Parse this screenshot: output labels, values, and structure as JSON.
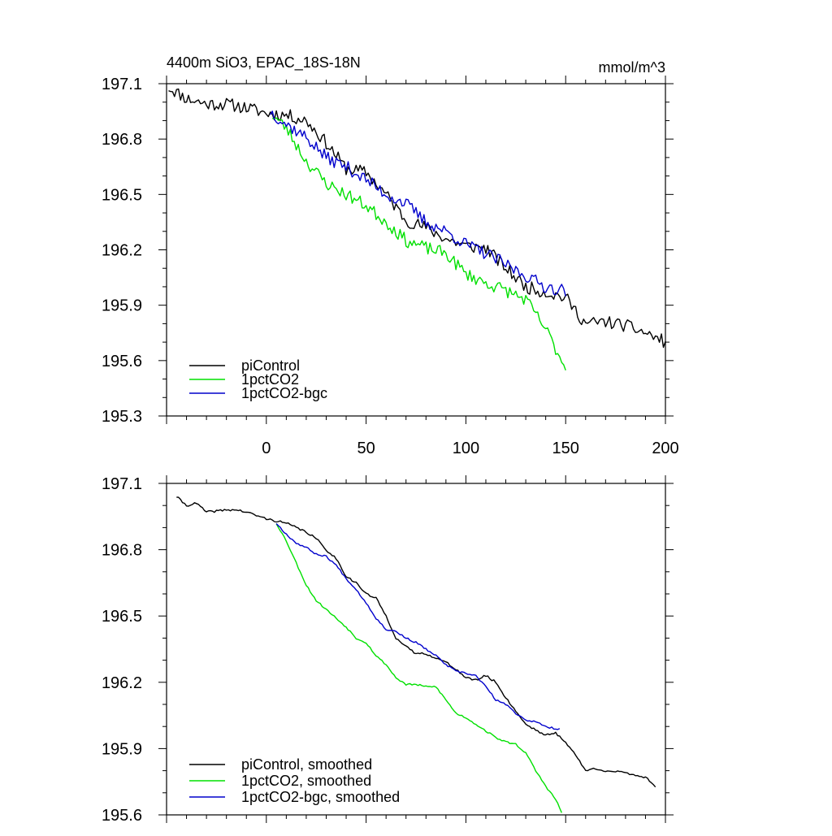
{
  "chart_data": [
    {
      "type": "line",
      "title": "4400m SiO3, EPAC_18S-18N",
      "units": "mmol/m^3",
      "xlim": [
        -50,
        200
      ],
      "ylim": [
        195.3,
        197.1
      ],
      "xticks": [
        0,
        50,
        100,
        150,
        200
      ],
      "yticks": [
        195.3,
        195.6,
        195.9,
        196.2,
        196.5,
        196.8,
        197.1
      ],
      "legend": "bottom-left",
      "series": [
        {
          "name": "piControl",
          "color": "#000000",
          "anchors": [
            [
              -49,
              197.08
            ],
            [
              -40,
              197.02
            ],
            [
              -30,
              196.99
            ],
            [
              -20,
              196.99
            ],
            [
              -10,
              196.97
            ],
            [
              0,
              196.94
            ],
            [
              10,
              196.93
            ],
            [
              20,
              196.9
            ],
            [
              30,
              196.78
            ],
            [
              40,
              196.64
            ],
            [
              50,
              196.62
            ],
            [
              60,
              196.5
            ],
            [
              70,
              196.36
            ],
            [
              80,
              196.32
            ],
            [
              90,
              196.26
            ],
            [
              100,
              196.22
            ],
            [
              110,
              196.21
            ],
            [
              120,
              196.1
            ],
            [
              130,
              196.0
            ],
            [
              140,
              195.97
            ],
            [
              150,
              195.94
            ],
            [
              160,
              195.8
            ],
            [
              170,
              195.81
            ],
            [
              180,
              195.79
            ],
            [
              190,
              195.75
            ],
            [
              200,
              195.7
            ]
          ],
          "noise": 0.035,
          "seed": 11
        },
        {
          "name": "1pctCO2",
          "color": "#00e000",
          "anchors": [
            [
              3,
              196.93
            ],
            [
              10,
              196.86
            ],
            [
              20,
              196.68
            ],
            [
              30,
              196.56
            ],
            [
              40,
              196.5
            ],
            [
              50,
              196.44
            ],
            [
              60,
              196.35
            ],
            [
              70,
              196.25
            ],
            [
              80,
              196.21
            ],
            [
              90,
              196.18
            ],
            [
              100,
              196.07
            ],
            [
              110,
              196.02
            ],
            [
              120,
              195.98
            ],
            [
              130,
              195.93
            ],
            [
              140,
              195.77
            ],
            [
              150,
              195.56
            ]
          ],
          "noise": 0.035,
          "seed": 23
        },
        {
          "name": "1pctCO2-bgc",
          "color": "#0000cc",
          "anchors": [
            [
              2,
              196.95
            ],
            [
              10,
              196.88
            ],
            [
              20,
              196.81
            ],
            [
              30,
              196.7
            ],
            [
              40,
              196.65
            ],
            [
              50,
              196.58
            ],
            [
              60,
              196.5
            ],
            [
              70,
              196.45
            ],
            [
              80,
              196.35
            ],
            [
              90,
              196.3
            ],
            [
              100,
              196.23
            ],
            [
              110,
              196.18
            ],
            [
              120,
              196.12
            ],
            [
              130,
              196.06
            ],
            [
              140,
              196.0
            ],
            [
              150,
              195.98
            ]
          ],
          "noise": 0.035,
          "seed": 37
        }
      ]
    },
    {
      "type": "line",
      "title": "",
      "xlim": [
        -50,
        200
      ],
      "ylim": [
        195.6,
        197.1
      ],
      "yticks": [
        195.6,
        195.9,
        196.2,
        196.5,
        196.8,
        197.1
      ],
      "legend": "bottom-left",
      "series": [
        {
          "name": "piControl, smoothed",
          "color": "#000000",
          "anchors": [
            [
              -45,
              197.04
            ],
            [
              -40,
              197.0
            ],
            [
              -35,
              197.01
            ],
            [
              -30,
              196.97
            ],
            [
              -20,
              196.98
            ],
            [
              -15,
              196.98
            ],
            [
              -10,
              196.97
            ],
            [
              0,
              196.94
            ],
            [
              5,
              196.93
            ],
            [
              10,
              196.92
            ],
            [
              20,
              196.88
            ],
            [
              25,
              196.85
            ],
            [
              30,
              196.8
            ],
            [
              35,
              196.76
            ],
            [
              40,
              196.68
            ],
            [
              45,
              196.65
            ],
            [
              50,
              196.6
            ],
            [
              55,
              196.58
            ],
            [
              60,
              196.5
            ],
            [
              65,
              196.4
            ],
            [
              70,
              196.36
            ],
            [
              75,
              196.33
            ],
            [
              80,
              196.33
            ],
            [
              85,
              196.31
            ],
            [
              90,
              196.29
            ],
            [
              95,
              196.26
            ],
            [
              100,
              196.22
            ],
            [
              105,
              196.21
            ],
            [
              110,
              196.23
            ],
            [
              115,
              196.2
            ],
            [
              120,
              196.13
            ],
            [
              125,
              196.07
            ],
            [
              130,
              196.01
            ],
            [
              140,
              195.96
            ],
            [
              145,
              195.97
            ],
            [
              150,
              195.93
            ],
            [
              155,
              195.87
            ],
            [
              160,
              195.8
            ],
            [
              165,
              195.81
            ],
            [
              170,
              195.8
            ],
            [
              180,
              195.79
            ],
            [
              190,
              195.77
            ],
            [
              195,
              195.73
            ]
          ],
          "noise": 0.005,
          "seed": 41
        },
        {
          "name": "1pctCO2, smoothed",
          "color": "#00e000",
          "anchors": [
            [
              5,
              196.92
            ],
            [
              10,
              196.84
            ],
            [
              15,
              196.74
            ],
            [
              20,
              196.64
            ],
            [
              25,
              196.57
            ],
            [
              30,
              196.53
            ],
            [
              35,
              196.49
            ],
            [
              40,
              196.45
            ],
            [
              45,
              196.4
            ],
            [
              50,
              196.38
            ],
            [
              55,
              196.32
            ],
            [
              60,
              196.28
            ],
            [
              65,
              196.22
            ],
            [
              70,
              196.19
            ],
            [
              75,
              196.19
            ],
            [
              80,
              196.18
            ],
            [
              85,
              196.18
            ],
            [
              90,
              196.12
            ],
            [
              95,
              196.06
            ],
            [
              100,
              196.04
            ],
            [
              105,
              196.01
            ],
            [
              110,
              195.98
            ],
            [
              115,
              195.95
            ],
            [
              120,
              195.93
            ],
            [
              125,
              195.92
            ],
            [
              130,
              195.88
            ],
            [
              135,
              195.8
            ],
            [
              140,
              195.73
            ],
            [
              145,
              195.67
            ],
            [
              148,
              195.61
            ]
          ],
          "noise": 0.004,
          "seed": 53
        },
        {
          "name": "1pctCO2-bgc, smoothed",
          "color": "#0000cc",
          "anchors": [
            [
              5,
              196.92
            ],
            [
              10,
              196.87
            ],
            [
              15,
              196.83
            ],
            [
              20,
              196.81
            ],
            [
              25,
              196.78
            ],
            [
              30,
              196.77
            ],
            [
              35,
              196.73
            ],
            [
              40,
              196.67
            ],
            [
              45,
              196.62
            ],
            [
              50,
              196.56
            ],
            [
              55,
              196.49
            ],
            [
              60,
              196.44
            ],
            [
              65,
              196.43
            ],
            [
              70,
              196.4
            ],
            [
              75,
              196.38
            ],
            [
              80,
              196.35
            ],
            [
              85,
              196.32
            ],
            [
              90,
              196.28
            ],
            [
              95,
              196.25
            ],
            [
              100,
              196.24
            ],
            [
              105,
              196.23
            ],
            [
              110,
              196.18
            ],
            [
              115,
              196.12
            ],
            [
              120,
              196.1
            ],
            [
              125,
              196.06
            ],
            [
              130,
              196.03
            ],
            [
              135,
              196.02
            ],
            [
              140,
              196.0
            ],
            [
              145,
              195.99
            ],
            [
              147,
              195.99
            ]
          ],
          "noise": 0.004,
          "seed": 67
        }
      ]
    }
  ]
}
